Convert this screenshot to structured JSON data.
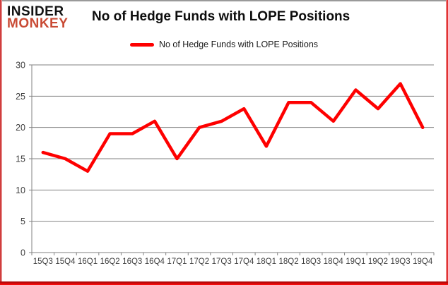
{
  "header": {
    "logo_top": "INSIDER",
    "logo_bottom": "MONKEY",
    "title": "No of Hedge Funds with LOPE Positions"
  },
  "legend": {
    "label": "No of Hedge Funds with LOPE Positions",
    "swatch_color": "#fe0000"
  },
  "chart_data": {
    "type": "line",
    "title": "No of Hedge Funds with LOPE Positions",
    "series_name": "No of Hedge Funds with LOPE Positions",
    "categories": [
      "15Q3",
      "15Q4",
      "16Q1",
      "16Q2",
      "16Q3",
      "16Q4",
      "17Q1",
      "17Q2",
      "17Q3",
      "17Q4",
      "18Q1",
      "18Q2",
      "18Q3",
      "18Q4",
      "19Q1",
      "19Q2",
      "19Q3",
      "19Q4"
    ],
    "values": [
      16,
      15,
      13,
      19,
      19,
      21,
      15,
      20,
      21,
      23,
      17,
      24,
      24,
      21,
      26,
      23,
      27,
      20
    ],
    "xlabel": "",
    "ylabel": "",
    "ylim": [
      0,
      30
    ],
    "yticks": [
      0,
      5,
      10,
      15,
      20,
      25,
      30
    ],
    "grid": true,
    "legend_position": "top-center",
    "line_color": "#fe0000",
    "grid_color": "#828282",
    "axis_label_color": "#404040"
  },
  "colors": {
    "background": "#ffffff",
    "logo_accent": "#c94b35",
    "line_red": "#fe0000",
    "border_red": "#cc1111",
    "top_border_gray": "#9a9a9a"
  }
}
